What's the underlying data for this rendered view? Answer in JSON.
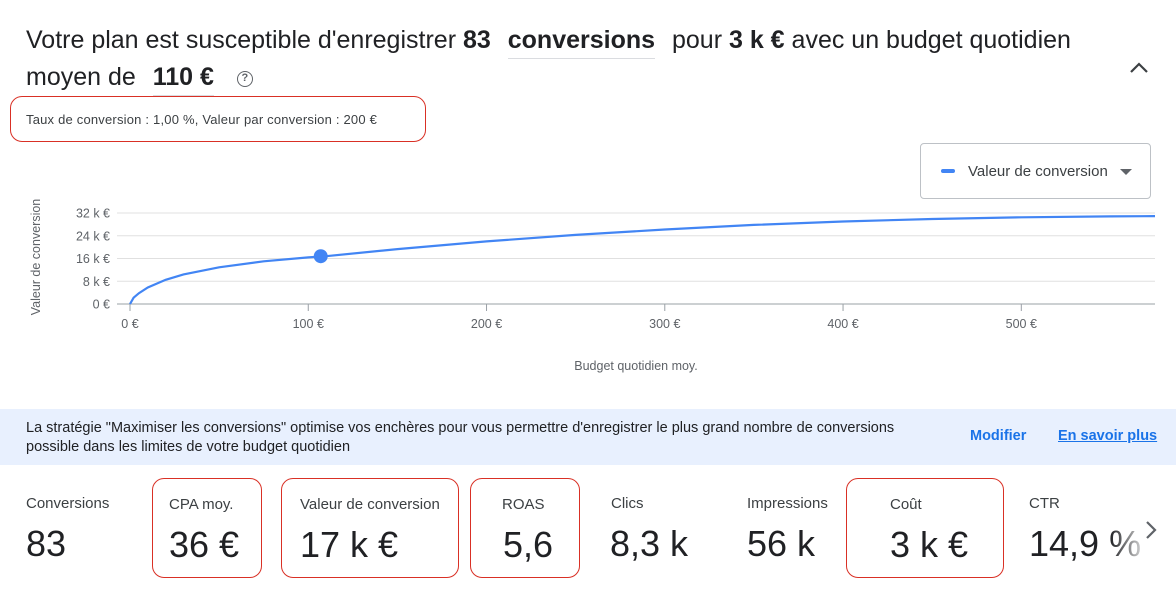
{
  "headline": {
    "part1": "Votre plan est susceptible d'enregistrer",
    "conversions_count": "83",
    "metric_select_value": "conversions",
    "part2": "pour",
    "cost": "3 k €",
    "part3": "avec un budget quotidien moyen de",
    "budget_select_value": "110 €",
    "help_icon": "help-circle-icon",
    "collapse_icon": "chevron-up-icon"
  },
  "rates_note": "Taux de conversion : 1,00 %, Valeur par conversion : 200 €",
  "metric_dropdown": {
    "label": "Valeur de conversion",
    "icon": "arrow-drop-down-icon",
    "swatch_color": "#4285f4"
  },
  "chart_data": {
    "type": "line",
    "ylabel": "Valeur de conversion",
    "xlabel": "Budget quotidien moy.",
    "y_ticks": [
      "0 €",
      "8 k €",
      "16 k €",
      "24 k €",
      "32 k €"
    ],
    "y_tick_values": [
      0,
      8000,
      16000,
      24000,
      32000
    ],
    "x_ticks": [
      "0 €",
      "100 €",
      "200 €",
      "300 €",
      "400 €",
      "500 €"
    ],
    "x_tick_values": [
      0,
      100,
      200,
      300,
      400,
      500
    ],
    "xlim": [
      0,
      575
    ],
    "ylim": [
      0,
      32000
    ],
    "series": [
      {
        "color": "#4285f4",
        "x": [
          0,
          2,
          5,
          10,
          20,
          30,
          50,
          75,
          100,
          110,
          150,
          200,
          250,
          300,
          350,
          400,
          450,
          500,
          550,
          575
        ],
        "y": [
          0,
          2200,
          3800,
          5800,
          8500,
          10400,
          12900,
          15000,
          16400,
          16800,
          19300,
          22000,
          24300,
          26200,
          27800,
          29000,
          29900,
          30500,
          30800,
          30900
        ]
      }
    ],
    "highlight_point": {
      "x": 107,
      "y": 16800
    },
    "grid": true
  },
  "info_banner": {
    "text": "La stratégie \"Maximiser les conversions\" optimise vos enchères pour vous permettre d'enregistrer le plus grand nombre de conversions possible dans les limites de votre budget quotidien",
    "modify_label": "Modifier",
    "learn_more_label": "En savoir plus"
  },
  "metrics": [
    {
      "label": "Conversions",
      "value": "83"
    },
    {
      "label": "CPA moy.",
      "value": "36 €"
    },
    {
      "label": "Valeur de conversion",
      "value": "17 k €"
    },
    {
      "label": "ROAS",
      "value": "5,6"
    },
    {
      "label": "Clics",
      "value": "8,3 k"
    },
    {
      "label": "Impressions",
      "value": "56 k"
    },
    {
      "label": "Coût",
      "value": "3 k €"
    },
    {
      "label": "CTR",
      "value": "14,9 %"
    }
  ],
  "next_icon": "chevron-right-icon",
  "highlight_color": "#d93025"
}
